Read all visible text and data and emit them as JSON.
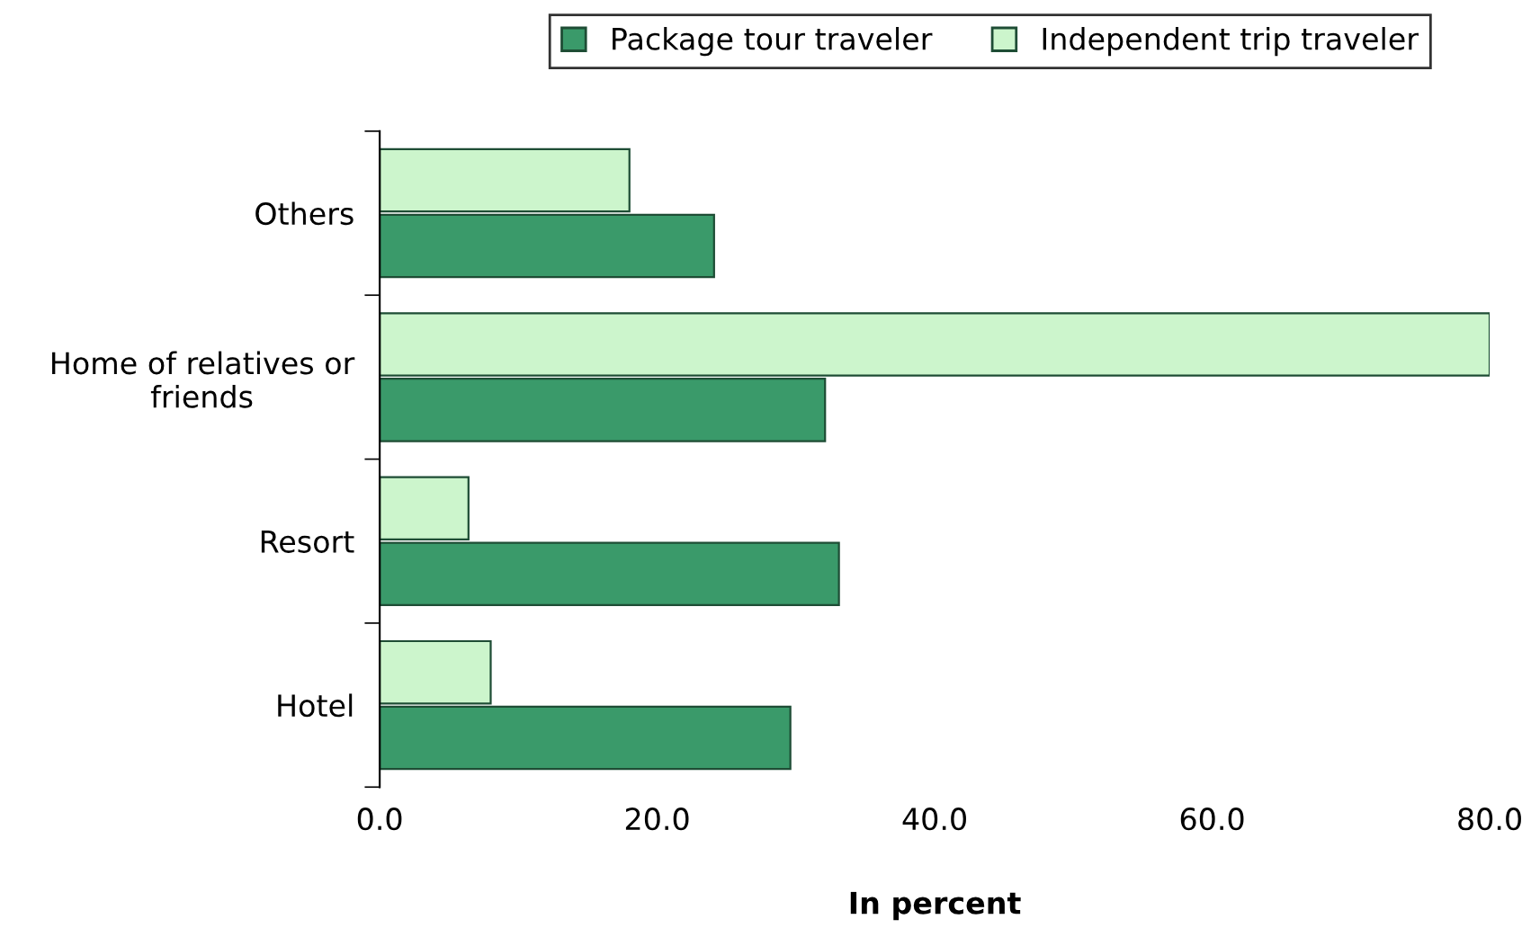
{
  "chart_data": {
    "type": "bar",
    "orientation": "horizontal",
    "xlabel": "In percent",
    "categories": [
      "Others",
      "Home of relatives or friends",
      "Resort",
      "Hotel"
    ],
    "series": [
      {
        "name": "Package tour traveler",
        "color": "#3a9a6a",
        "values": [
          24.1,
          32.1,
          33.1,
          29.6
        ]
      },
      {
        "name": "Independent trip traveler",
        "color": "#ccf5cc",
        "values": [
          18.0,
          80.0,
          6.4,
          8.0
        ]
      }
    ],
    "xlim": [
      0,
      80
    ],
    "xticks": [
      {
        "value": 0,
        "label": "0.0"
      },
      {
        "value": 20,
        "label": "20.0"
      },
      {
        "value": 40,
        "label": "40.0"
      },
      {
        "value": 60,
        "label": "60.0"
      },
      {
        "value": 80,
        "label": "80.0"
      }
    ],
    "legend": "top",
    "grid": false
  }
}
